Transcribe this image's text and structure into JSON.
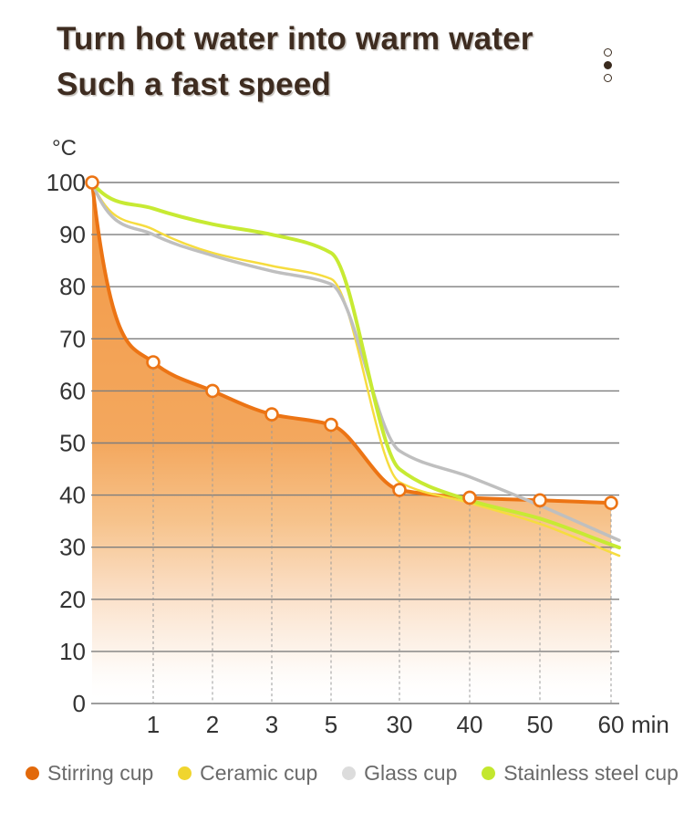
{
  "page": {
    "title_line1": "Turn hot water into warm water",
    "title_line2": "Such a fast speed",
    "title_color": "#3E2C20",
    "background": "#FFFFFF"
  },
  "pagination": {
    "dots": [
      "empty",
      "filled",
      "empty"
    ],
    "color": "#3A2B1E"
  },
  "chart_data": {
    "type": "line",
    "title": "Turn hot water into warm water / Such a fast speed",
    "x_unit": "min",
    "y_unit": "°C",
    "categories_min": [
      0,
      1,
      2,
      3,
      5,
      30,
      40,
      50,
      60
    ],
    "x_tick_labels": [
      "1",
      "2",
      "3",
      "5",
      "30",
      "40",
      "50",
      "60"
    ],
    "y_ticks": [
      0,
      10,
      20,
      30,
      40,
      50,
      60,
      70,
      80,
      90,
      100
    ],
    "ylim": [
      0,
      100
    ],
    "grid": {
      "horizontal": "solid",
      "vertical": "dashed-up-to-curve"
    },
    "legend_position": "bottom",
    "axis_text_color": "#333333",
    "grid_color": "#7E7E7E",
    "dash_color": "#9A9A9A",
    "legend_text_color": "#6A6A6A",
    "series": [
      {
        "name": "Stirring cup",
        "color": "#EC7414",
        "dot_color": "#E2690B",
        "marker_fill": "#FFFDF7",
        "markers": true,
        "area_fill": true,
        "values": [
          100,
          65.5,
          60,
          55.5,
          53.5,
          41,
          39.5,
          39,
          38.5
        ]
      },
      {
        "name": "Ceramic cup",
        "color": "#F6DC3F",
        "dot_color": "#F0D52E",
        "markers": false,
        "area_fill": false,
        "values": [
          100,
          91,
          86.5,
          84,
          81.5,
          42.5,
          38.5,
          34.5,
          29
        ]
      },
      {
        "name": "Glass cup",
        "color": "#BFBFBF",
        "dot_color": "#DCDCDC",
        "markers": false,
        "area_fill": false,
        "values": [
          100,
          90,
          86,
          83,
          80.5,
          48.5,
          43.5,
          38,
          32
        ]
      },
      {
        "name": "Stainless steel cup",
        "color": "#C7EA33",
        "dot_color": "#C3E72E",
        "markers": false,
        "area_fill": false,
        "values": [
          100,
          95,
          92,
          90,
          86.5,
          45,
          39,
          35.5,
          30.5
        ]
      }
    ],
    "area_gradient": [
      {
        "offset": 0,
        "color": "#F2943C",
        "opacity": 0.95
      },
      {
        "offset": 0.5,
        "color": "#F2A050",
        "opacity": 0.92
      },
      {
        "offset": 0.65,
        "color": "#F5B877",
        "opacity": 0.85
      },
      {
        "offset": 0.78,
        "color": "#F9D5B4",
        "opacity": 0.8
      },
      {
        "offset": 0.9,
        "color": "#FCEDE0",
        "opacity": 0.65
      },
      {
        "offset": 1,
        "color": "#FFFFFF",
        "opacity": 0
      }
    ]
  }
}
